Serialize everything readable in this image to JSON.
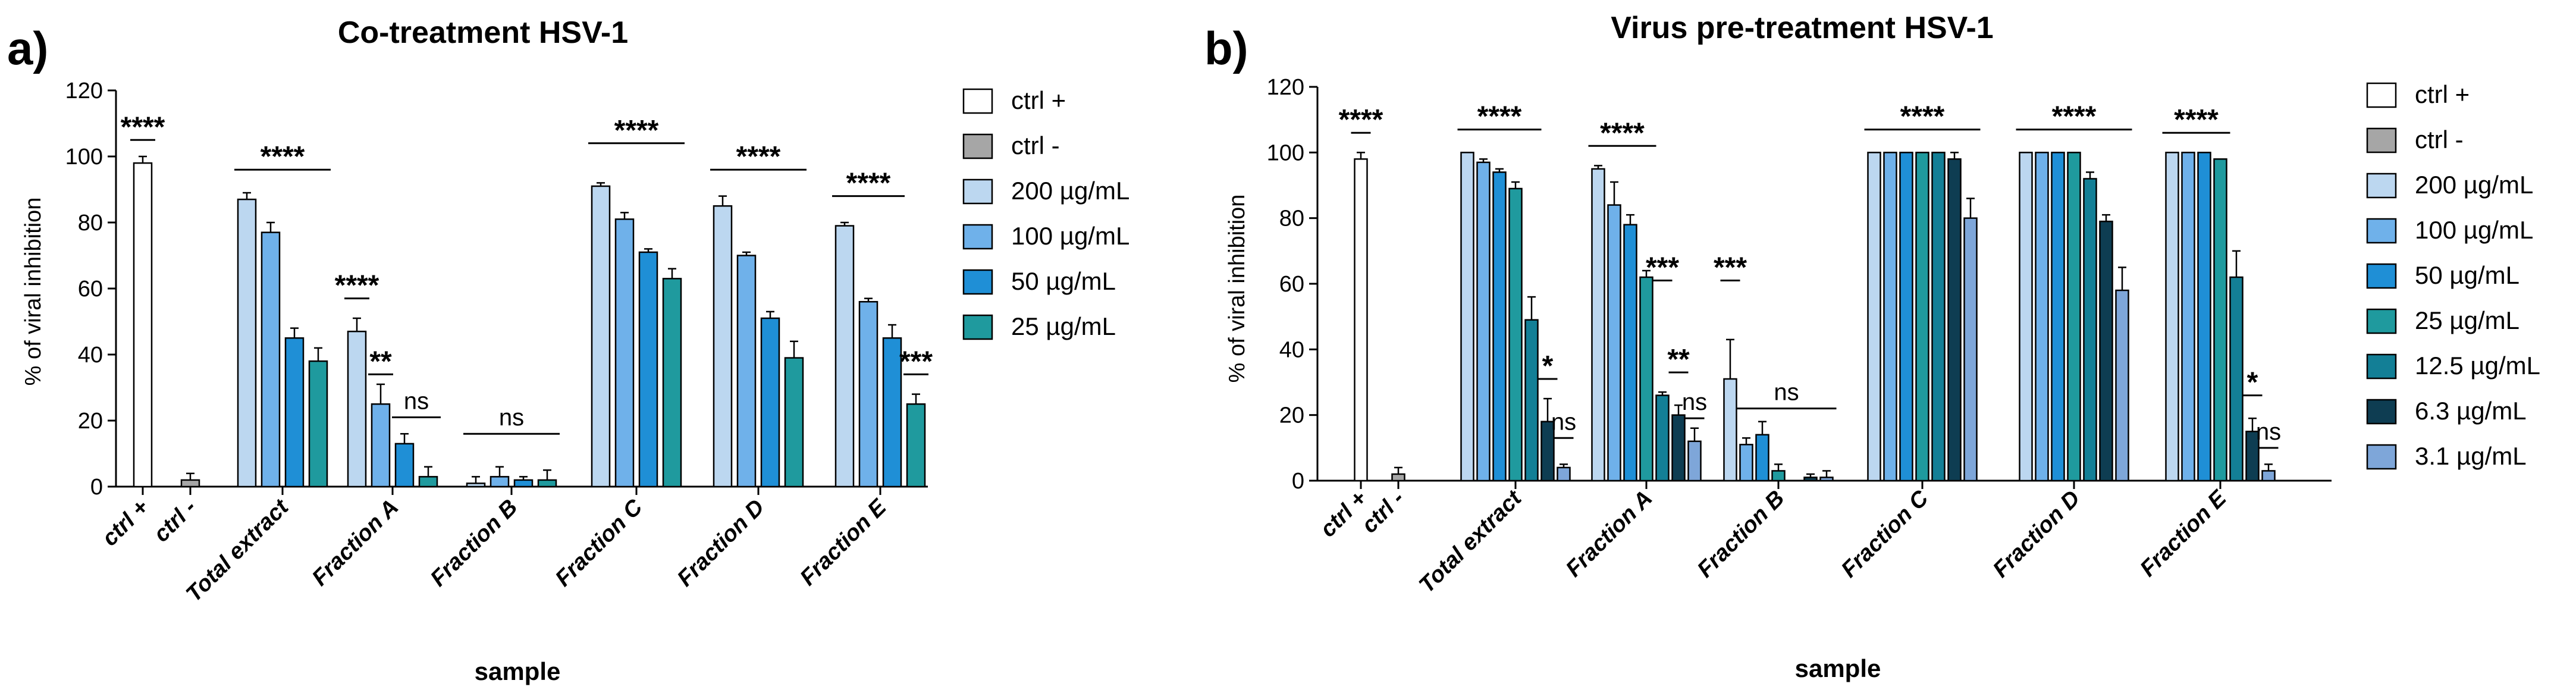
{
  "chart_data": [
    {
      "type": "bar",
      "panel": "a)",
      "title": "Co-treatment HSV-1",
      "xlabel": "sample",
      "ylabel": "% of viral inhibition",
      "ylim": [
        0,
        120
      ],
      "yticks": [
        "0",
        "20",
        "40",
        "60",
        "80",
        "100",
        "120"
      ],
      "legend": [
        "ctrl +",
        "ctrl -",
        "200 µg/mL",
        "100 µg/mL",
        "50 µg/mL",
        "25 µg/mL"
      ],
      "colors": [
        "#ffffff",
        "#a6a6a6",
        "#bcd7f0",
        "#6fb1ea",
        "#1f8fd6",
        "#1f9a9e"
      ],
      "groups": [
        {
          "label": "ctrl +",
          "bars": [
            {
              "s": 0,
              "v": 98,
              "e": 2
            }
          ]
        },
        {
          "label": "ctrl -",
          "bars": [
            {
              "s": 1,
              "v": 2,
              "e": 2
            }
          ]
        },
        {
          "label": "Total extract",
          "bars": [
            {
              "s": 2,
              "v": 87,
              "e": 2
            },
            {
              "s": 3,
              "v": 77,
              "e": 3
            },
            {
              "s": 4,
              "v": 45,
              "e": 3
            },
            {
              "s": 5,
              "v": 38,
              "e": 4
            }
          ]
        },
        {
          "label": "Fraction A",
          "bars": [
            {
              "s": 2,
              "v": 47,
              "e": 4
            },
            {
              "s": 3,
              "v": 25,
              "e": 6
            },
            {
              "s": 4,
              "v": 13,
              "e": 3
            },
            {
              "s": 5,
              "v": 3,
              "e": 3
            }
          ]
        },
        {
          "label": "Fraction B",
          "bars": [
            {
              "s": 2,
              "v": 1,
              "e": 2
            },
            {
              "s": 3,
              "v": 3,
              "e": 3
            },
            {
              "s": 4,
              "v": 2,
              "e": 1
            },
            {
              "s": 5,
              "v": 2,
              "e": 3
            }
          ]
        },
        {
          "label": "Fraction C",
          "bars": [
            {
              "s": 2,
              "v": 91,
              "e": 1
            },
            {
              "s": 3,
              "v": 81,
              "e": 2
            },
            {
              "s": 4,
              "v": 71,
              "e": 1
            },
            {
              "s": 5,
              "v": 63,
              "e": 3
            }
          ]
        },
        {
          "label": "Fraction D",
          "bars": [
            {
              "s": 2,
              "v": 85,
              "e": 3
            },
            {
              "s": 3,
              "v": 70,
              "e": 1
            },
            {
              "s": 4,
              "v": 51,
              "e": 2
            },
            {
              "s": 5,
              "v": 39,
              "e": 5
            }
          ]
        },
        {
          "label": "Fraction E",
          "bars": [
            {
              "s": 2,
              "v": 79,
              "e": 1
            },
            {
              "s": 3,
              "v": 56,
              "e": 1
            },
            {
              "s": 4,
              "v": 45,
              "e": 4
            },
            {
              "s": 5,
              "v": 25,
              "e": 3
            }
          ]
        }
      ],
      "annotations": [
        {
          "text": "****",
          "group": 0,
          "from": 0,
          "to": 0,
          "y": 105
        },
        {
          "text": "****",
          "group": 2,
          "from": 0,
          "to": 3,
          "y": 96
        },
        {
          "text": "****",
          "group": 3,
          "from": 0,
          "to": 0,
          "y": 57
        },
        {
          "text": "**",
          "group": 3,
          "from": 1,
          "to": 1,
          "y": 34
        },
        {
          "text": "ns",
          "group": 3,
          "from": 2,
          "to": 3,
          "y": 21
        },
        {
          "text": "ns",
          "group": 4,
          "from": 0,
          "to": 3,
          "y": 16
        },
        {
          "text": "****",
          "group": 5,
          "from": 0,
          "to": 3,
          "y": 104
        },
        {
          "text": "****",
          "group": 6,
          "from": 0,
          "to": 3,
          "y": 96
        },
        {
          "text": "****",
          "group": 7,
          "from": 0,
          "to": 2,
          "y": 88
        },
        {
          "text": "***",
          "group": 7,
          "from": 3,
          "to": 3,
          "y": 34
        }
      ]
    },
    {
      "type": "bar",
      "panel": "b)",
      "title": "Virus pre-treatment HSV-1",
      "xlabel": "sample",
      "ylabel": "% of viral inhibition",
      "ylim": [
        0,
        120
      ],
      "yticks": [
        "0",
        "20",
        "40",
        "60",
        "80",
        "100",
        "120"
      ],
      "legend": [
        "ctrl +",
        "ctrl -",
        "200 µg/mL",
        "100 µg/mL",
        "50 µg/mL",
        "25 µg/mL",
        "12.5 µg/mL",
        "6.3 µg/mL",
        "3.1 µg/mL"
      ],
      "colors": [
        "#ffffff",
        "#a6a6a6",
        "#bcd7f0",
        "#6fb1ea",
        "#1f8fd6",
        "#1f9a9e",
        "#137f96",
        "#0e3d52",
        "#7ea6d9"
      ],
      "groups": [
        {
          "label": "ctrl +",
          "bars": [
            {
              "s": 0,
              "v": 98,
              "e": 2
            }
          ]
        },
        {
          "label": "ctrl -",
          "bars": [
            {
              "s": 1,
              "v": 2,
              "e": 2
            }
          ]
        },
        {
          "label": "Total extract",
          "bars": [
            {
              "s": 2,
              "v": 100,
              "e": 0
            },
            {
              "s": 3,
              "v": 97,
              "e": 1
            },
            {
              "s": 4,
              "v": 94,
              "e": 1
            },
            {
              "s": 5,
              "v": 89,
              "e": 2
            },
            {
              "s": 6,
              "v": 49,
              "e": 7
            },
            {
              "s": 7,
              "v": 18,
              "e": 7
            },
            {
              "s": 8,
              "v": 4,
              "e": 1
            }
          ]
        },
        {
          "label": "Fraction A",
          "bars": [
            {
              "s": 2,
              "v": 95,
              "e": 1
            },
            {
              "s": 3,
              "v": 84,
              "e": 7
            },
            {
              "s": 4,
              "v": 78,
              "e": 3
            },
            {
              "s": 5,
              "v": 62,
              "e": 2
            },
            {
              "s": 6,
              "v": 26,
              "e": 1
            },
            {
              "s": 7,
              "v": 20,
              "e": 3
            },
            {
              "s": 8,
              "v": 12,
              "e": 4
            }
          ]
        },
        {
          "label": "Fraction B",
          "bars": [
            {
              "s": 2,
              "v": 31,
              "e": 12
            },
            {
              "s": 3,
              "v": 11,
              "e": 2
            },
            {
              "s": 4,
              "v": 14,
              "e": 4
            },
            {
              "s": 5,
              "v": 3,
              "e": 2
            },
            {
              "s": 6,
              "v": 0,
              "e": 0
            },
            {
              "s": 7,
              "v": 1,
              "e": 1
            },
            {
              "s": 8,
              "v": 1,
              "e": 2
            }
          ]
        },
        {
          "label": "Fraction C",
          "bars": [
            {
              "s": 2,
              "v": 100,
              "e": 0
            },
            {
              "s": 3,
              "v": 100,
              "e": 0
            },
            {
              "s": 4,
              "v": 100,
              "e": 0
            },
            {
              "s": 5,
              "v": 100,
              "e": 0
            },
            {
              "s": 6,
              "v": 100,
              "e": 0
            },
            {
              "s": 7,
              "v": 98,
              "e": 2
            },
            {
              "s": 8,
              "v": 80,
              "e": 6
            }
          ]
        },
        {
          "label": "Fraction D",
          "bars": [
            {
              "s": 2,
              "v": 100,
              "e": 0
            },
            {
              "s": 3,
              "v": 100,
              "e": 0
            },
            {
              "s": 4,
              "v": 100,
              "e": 0
            },
            {
              "s": 5,
              "v": 100,
              "e": 0
            },
            {
              "s": 6,
              "v": 92,
              "e": 2
            },
            {
              "s": 7,
              "v": 79,
              "e": 2
            },
            {
              "s": 8,
              "v": 58,
              "e": 7
            }
          ]
        },
        {
          "label": "Fraction E",
          "bars": [
            {
              "s": 2,
              "v": 100,
              "e": 0
            },
            {
              "s": 3,
              "v": 100,
              "e": 0
            },
            {
              "s": 4,
              "v": 100,
              "e": 0
            },
            {
              "s": 5,
              "v": 98,
              "e": 0
            },
            {
              "s": 6,
              "v": 62,
              "e": 8
            },
            {
              "s": 7,
              "v": 15,
              "e": 4
            },
            {
              "s": 8,
              "v": 3,
              "e": 2
            }
          ]
        }
      ],
      "annotations": [
        {
          "text": "****",
          "group": 0,
          "from": 0,
          "to": 0,
          "y": 106
        },
        {
          "text": "****",
          "group": 2,
          "from": 0,
          "to": 4,
          "y": 107
        },
        {
          "text": "*",
          "group": 2,
          "from": 5,
          "to": 5,
          "y": 31
        },
        {
          "text": "ns",
          "group": 2,
          "from": 6,
          "to": 6,
          "y": 13
        },
        {
          "text": "****",
          "group": 3,
          "from": 0,
          "to": 3,
          "y": 102
        },
        {
          "text": "***",
          "group": 3,
          "from": 4,
          "to": 4,
          "y": 61
        },
        {
          "text": "**",
          "group": 3,
          "from": 5,
          "to": 5,
          "y": 33
        },
        {
          "text": "ns",
          "group": 3,
          "from": 6,
          "to": 6,
          "y": 19
        },
        {
          "text": "***",
          "group": 4,
          "from": 0,
          "to": 0,
          "y": 61
        },
        {
          "text": "ns",
          "group": 4,
          "from": 1,
          "to": 6,
          "y": 22
        },
        {
          "text": "****",
          "group": 5,
          "from": 0,
          "to": 6,
          "y": 107
        },
        {
          "text": "****",
          "group": 6,
          "from": 0,
          "to": 6,
          "y": 107
        },
        {
          "text": "****",
          "group": 7,
          "from": 0,
          "to": 3,
          "y": 106
        },
        {
          "text": "*",
          "group": 7,
          "from": 5,
          "to": 5,
          "y": 26
        },
        {
          "text": "ns",
          "group": 7,
          "from": 6,
          "to": 6,
          "y": 10
        }
      ]
    }
  ]
}
